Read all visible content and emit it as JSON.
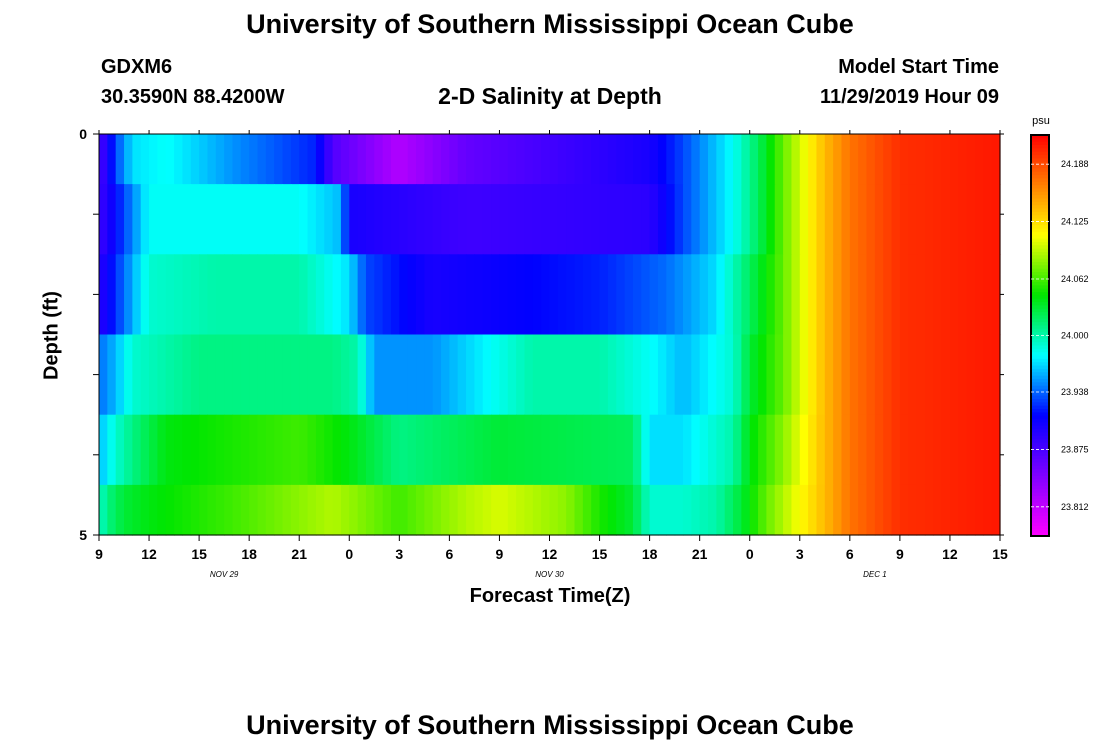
{
  "header": {
    "title": "University of Southern Mississippi Ocean Cube",
    "footer_title": "University of Southern Mississippi Ocean Cube",
    "station": "GDXM6",
    "location": "30.3590N 88.4200W",
    "plot_title": "2-D Salinity at Depth",
    "start_label": "Model Start Time",
    "start_time": "11/29/2019 Hour 09"
  },
  "chart_data": {
    "type": "heatmap",
    "xlabel": "Forecast Time(Z)",
    "ylabel": "Depth (ft)",
    "x_tick_labels": [
      "9",
      "12",
      "15",
      "18",
      "21",
      "0",
      "3",
      "6",
      "9",
      "12",
      "15",
      "18",
      "21",
      "0",
      "3",
      "6",
      "9",
      "12",
      "15"
    ],
    "x_hours": [
      0,
      3,
      6,
      9,
      12,
      15,
      18,
      21,
      24,
      27,
      30,
      33,
      36,
      39,
      42,
      45,
      48,
      51,
      54
    ],
    "date_labels": [
      {
        "label": "NOV 29",
        "hour": 7.5
      },
      {
        "label": "NOV 30",
        "hour": 27
      },
      {
        "label": "DEC 1",
        "hour": 46.5
      }
    ],
    "y_tick_labels": [
      "0",
      "5"
    ],
    "ylim": [
      0,
      5
    ],
    "depth_rows": [
      0.25,
      1.0,
      2.0,
      3.0,
      4.0,
      4.75
    ],
    "colorbar": {
      "unit": "psu",
      "min": 23.78,
      "max": 24.22,
      "ticks": [
        23.812,
        23.875,
        23.938,
        24.0,
        24.062,
        24.125,
        24.188
      ]
    },
    "salinity_keyframes": [
      {
        "depth": 0.25,
        "hours": [
          0,
          1,
          2,
          4,
          8,
          13,
          14,
          18,
          22,
          33,
          35,
          38,
          39.5,
          41,
          43.5,
          45,
          48,
          54
        ],
        "values": [
          23.87,
          23.93,
          23.97,
          23.98,
          23.95,
          23.92,
          23.87,
          23.82,
          23.86,
          23.9,
          23.93,
          23.98,
          24.02,
          24.07,
          24.14,
          24.17,
          24.2,
          24.21
        ]
      },
      {
        "depth": 1.0,
        "hours": [
          0,
          1.5,
          3,
          9,
          12,
          14.5,
          15,
          22,
          33,
          35,
          38,
          39.5,
          41,
          43.5,
          45,
          48,
          54
        ],
        "values": [
          23.88,
          23.93,
          23.98,
          23.98,
          23.98,
          23.96,
          23.9,
          23.88,
          23.89,
          23.93,
          23.98,
          24.02,
          24.07,
          24.14,
          24.17,
          24.2,
          24.21
        ]
      },
      {
        "depth": 2.0,
        "hours": [
          0,
          1.5,
          3,
          7,
          12,
          15,
          16,
          20,
          30,
          34,
          37,
          39,
          41,
          43.5,
          45,
          48,
          54
        ],
        "values": [
          23.89,
          23.94,
          23.99,
          24.0,
          24.0,
          23.97,
          23.93,
          23.9,
          23.92,
          23.94,
          23.97,
          24.02,
          24.07,
          24.14,
          24.17,
          24.2,
          24.21
        ]
      },
      {
        "depth": 3.0,
        "hours": [
          0,
          1,
          2,
          6,
          14,
          15.5,
          16.5,
          20,
          26,
          30,
          33,
          35,
          38,
          39,
          41,
          43.5,
          45,
          48,
          54
        ],
        "values": [
          23.94,
          23.96,
          23.99,
          24.01,
          24.01,
          24.0,
          23.95,
          23.95,
          24.0,
          24.0,
          23.98,
          23.96,
          23.99,
          24.03,
          24.07,
          24.14,
          24.17,
          24.2,
          24.21
        ]
      },
      {
        "depth": 4.0,
        "hours": [
          0,
          1,
          2,
          4,
          12,
          15,
          18,
          24,
          32,
          33,
          35,
          38,
          39,
          41,
          43.5,
          45,
          48,
          54
        ],
        "values": [
          23.96,
          23.99,
          24.01,
          24.04,
          24.06,
          24.04,
          24.01,
          24.03,
          24.02,
          23.97,
          23.97,
          24.0,
          24.04,
          24.08,
          24.14,
          24.17,
          24.2,
          24.21
        ]
      },
      {
        "depth": 4.75,
        "hours": [
          0,
          0.5,
          1.5,
          3,
          8,
          14,
          18,
          22,
          24,
          28,
          30,
          32,
          33,
          35,
          37,
          38.5,
          40,
          42,
          43.5,
          45,
          48,
          54
        ],
        "values": [
          23.99,
          24.01,
          24.03,
          24.04,
          24.06,
          24.09,
          24.06,
          24.09,
          24.1,
          24.08,
          24.05,
          24.03,
          23.99,
          23.99,
          24.0,
          24.03,
          24.07,
          24.11,
          24.14,
          24.17,
          24.2,
          24.21
        ]
      }
    ]
  }
}
